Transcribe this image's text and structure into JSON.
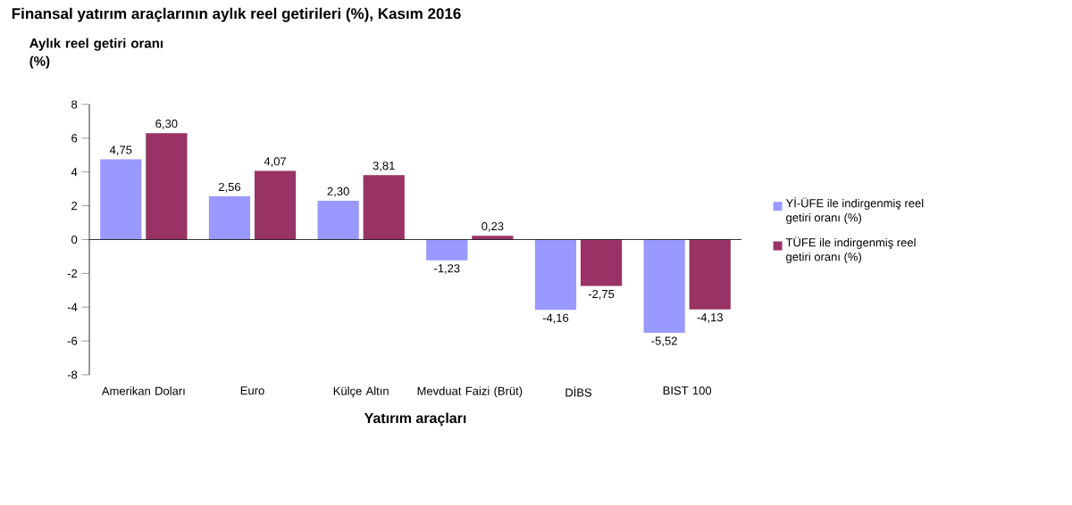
{
  "chart_data": {
    "type": "bar",
    "title": "Finansal yatırım araçlarının aylık reel getirileri (%), Kasım 2016",
    "ylabel": "Aylık reel getiri oranı (%)",
    "xlabel": "Yatırım araçları",
    "categories": [
      "Amerikan Doları",
      "Euro",
      "Külçe Altın",
      "Mevduat Faizi (Brüt)",
      "DİBS",
      "BIST 100"
    ],
    "series": [
      {
        "name": "Yİ-ÜFE ile indirgenmiş reel getiri oranı (%)",
        "color": "#9999ff",
        "values": [
          4.75,
          2.56,
          2.3,
          -1.23,
          -4.16,
          -5.52
        ],
        "value_labels": [
          "4,75",
          "2,56",
          "2,30",
          "-1,23",
          "-4,16",
          "-5,52"
        ]
      },
      {
        "name": "TÜFE ile indirgenmiş reel getiri oranı (%)",
        "color": "#993366",
        "values": [
          6.3,
          4.07,
          3.81,
          0.23,
          -2.75,
          -4.13
        ],
        "value_labels": [
          "6,30",
          "4,07",
          "3,81",
          "0,23",
          "-2,75",
          "-4,13"
        ]
      }
    ],
    "ylim": [
      -8,
      8
    ],
    "yticks": [
      -8,
      -6,
      -4,
      -2,
      0,
      2,
      4,
      6,
      8
    ],
    "legend": "right"
  }
}
